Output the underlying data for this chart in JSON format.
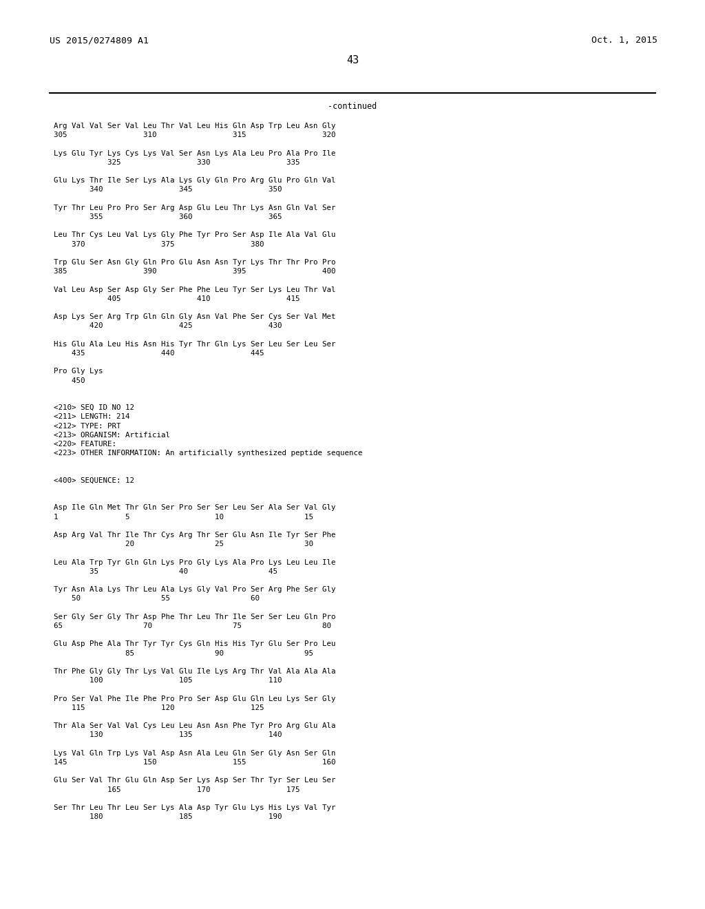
{
  "background_color": "#ffffff",
  "header_left": "US 2015/0274809 A1",
  "header_right": "Oct. 1, 2015",
  "page_number": "43",
  "continued_label": "-continued",
  "font_family": "DejaVu Sans Mono",
  "font_size": 7.8,
  "header_font_size": 9.5,
  "page_num_font_size": 11,
  "content_lines": [
    "Arg Val Val Ser Val Leu Thr Val Leu His Gln Asp Trp Leu Asn Gly",
    "305                 310                 315                 320",
    "",
    "Lys Glu Tyr Lys Cys Lys Val Ser Asn Lys Ala Leu Pro Ala Pro Ile",
    "            325                 330                 335",
    "",
    "Glu Lys Thr Ile Ser Lys Ala Lys Gly Gln Pro Arg Glu Pro Gln Val",
    "        340                 345                 350",
    "",
    "Tyr Thr Leu Pro Pro Ser Arg Asp Glu Leu Thr Lys Asn Gln Val Ser",
    "        355                 360                 365",
    "",
    "Leu Thr Cys Leu Val Lys Gly Phe Tyr Pro Ser Asp Ile Ala Val Glu",
    "    370                 375                 380",
    "",
    "Trp Glu Ser Asn Gly Gln Pro Glu Asn Asn Tyr Lys Thr Thr Pro Pro",
    "385                 390                 395                 400",
    "",
    "Val Leu Asp Ser Asp Gly Ser Phe Phe Leu Tyr Ser Lys Leu Thr Val",
    "            405                 410                 415",
    "",
    "Asp Lys Ser Arg Trp Gln Gln Gly Asn Val Phe Ser Cys Ser Val Met",
    "        420                 425                 430",
    "",
    "His Glu Ala Leu His Asn His Tyr Thr Gln Lys Ser Leu Ser Leu Ser",
    "    435                 440                 445",
    "",
    "Pro Gly Lys",
    "    450",
    "",
    "",
    "<210> SEQ ID NO 12",
    "<211> LENGTH: 214",
    "<212> TYPE: PRT",
    "<213> ORGANISM: Artificial",
    "<220> FEATURE:",
    "<223> OTHER INFORMATION: An artificially synthesized peptide sequence",
    "",
    "",
    "<400> SEQUENCE: 12",
    "",
    "",
    "Asp Ile Gln Met Thr Gln Ser Pro Ser Ser Leu Ser Ala Ser Val Gly",
    "1               5                   10                  15",
    "",
    "Asp Arg Val Thr Ile Thr Cys Arg Thr Ser Glu Asn Ile Tyr Ser Phe",
    "                20                  25                  30",
    "",
    "Leu Ala Trp Tyr Gln Gln Lys Pro Gly Lys Ala Pro Lys Leu Leu Ile",
    "        35                  40                  45",
    "",
    "Tyr Asn Ala Lys Thr Leu Ala Lys Gly Val Pro Ser Arg Phe Ser Gly",
    "    50                  55                  60",
    "",
    "Ser Gly Ser Gly Thr Asp Phe Thr Leu Thr Ile Ser Ser Leu Gln Pro",
    "65                  70                  75                  80",
    "",
    "Glu Asp Phe Ala Thr Tyr Tyr Cys Gln His His Tyr Glu Ser Pro Leu",
    "                85                  90                  95",
    "",
    "Thr Phe Gly Gly Thr Lys Val Glu Ile Lys Arg Thr Val Ala Ala Ala",
    "        100                 105                 110",
    "",
    "Pro Ser Val Phe Ile Phe Pro Pro Ser Asp Glu Gln Leu Lys Ser Gly",
    "    115                 120                 125",
    "",
    "Thr Ala Ser Val Val Cys Leu Leu Asn Asn Phe Tyr Pro Arg Glu Ala",
    "        130                 135                 140",
    "",
    "Lys Val Gln Trp Lys Val Asp Asn Ala Leu Gln Ser Gly Asn Ser Gln",
    "145                 150                 155                 160",
    "",
    "Glu Ser Val Thr Glu Gln Asp Ser Lys Asp Ser Thr Tyr Ser Leu Ser",
    "            165                 170                 175",
    "",
    "Ser Thr Leu Thr Leu Ser Lys Ala Asp Tyr Glu Lys His Lys Val Tyr",
    "        180                 185                 190"
  ]
}
